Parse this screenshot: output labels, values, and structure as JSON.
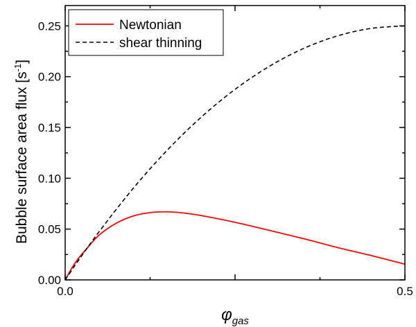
{
  "chart_data": {
    "type": "line",
    "title": "",
    "xlabel_main": "φ",
    "xlabel_sub": "gas",
    "ylabel_main": "Bubble surface area flux [s",
    "ylabel_sup": "-1",
    "ylabel_end": "]",
    "xlim": [
      0.0,
      0.5
    ],
    "ylim": [
      0.0,
      0.27
    ],
    "x_ticks": [
      0.0,
      0.25,
      0.5
    ],
    "x_tick_labels": [
      "0.0",
      "",
      "0.5"
    ],
    "y_ticks": [
      0.0,
      0.05,
      0.1,
      0.15,
      0.2,
      0.25
    ],
    "y_tick_labels": [
      "0.00",
      "0.05",
      "0.10",
      "0.15",
      "0.20",
      "0.25"
    ],
    "grid": false,
    "legend_position": "top-left",
    "series": [
      {
        "name": "Newtonian",
        "color": "#ff0000",
        "style": "solid",
        "x": [
          0.0,
          0.01,
          0.02,
          0.03,
          0.05,
          0.075,
          0.1,
          0.125,
          0.15,
          0.175,
          0.2,
          0.25,
          0.3,
          0.35,
          0.4,
          0.45,
          0.5
        ],
        "y": [
          0.0,
          0.0118,
          0.0215,
          0.0295,
          0.0441,
          0.0557,
          0.0628,
          0.0662,
          0.067,
          0.0658,
          0.0633,
          0.0567,
          0.0488,
          0.0407,
          0.032,
          0.024,
          0.0155
        ]
      },
      {
        "name": "shear thinning",
        "color": "#000000",
        "style": "dashed",
        "x": [
          0.0,
          0.01,
          0.02,
          0.05,
          0.1,
          0.15,
          0.2,
          0.25,
          0.3,
          0.35,
          0.4,
          0.45,
          0.5
        ],
        "y": [
          0.0,
          0.0099,
          0.0196,
          0.0475,
          0.09,
          0.1275,
          0.16,
          0.1875,
          0.21,
          0.2275,
          0.24,
          0.2475,
          0.25
        ]
      }
    ]
  }
}
